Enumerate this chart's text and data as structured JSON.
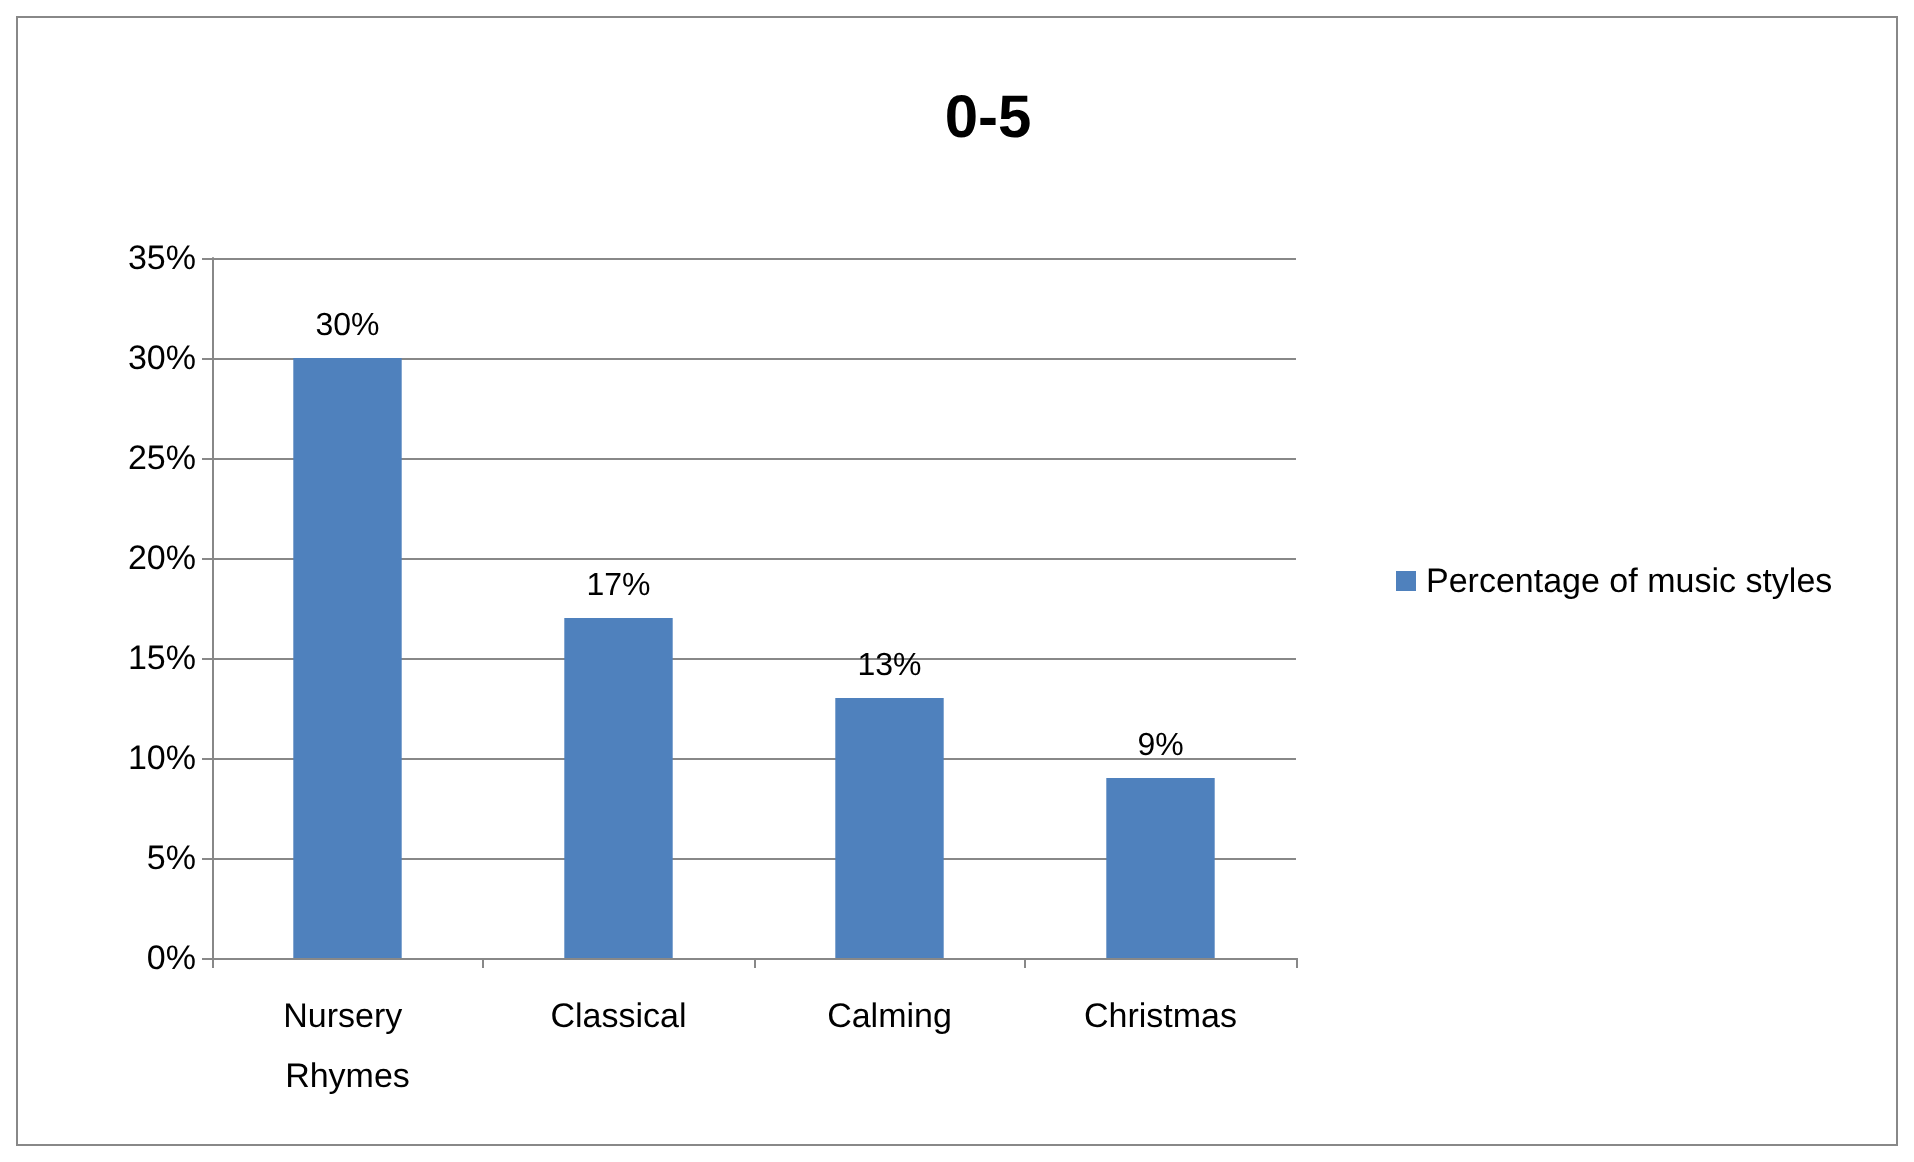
{
  "chart_data": {
    "type": "bar",
    "title": "0-5",
    "categories": [
      "Nursery Rhymes",
      "Classical",
      "Calming",
      "Christmas"
    ],
    "series": [
      {
        "name": "Percentage of music styles",
        "color": "#4f81bd",
        "values": [
          30,
          17,
          13,
          9
        ],
        "value_labels": [
          "30%",
          "17%",
          "13%",
          "9%"
        ]
      }
    ],
    "ylim": [
      0,
      35
    ],
    "yticks": [
      {
        "value": 0,
        "label": "0%"
      },
      {
        "value": 5,
        "label": "5%"
      },
      {
        "value": 10,
        "label": "10%"
      },
      {
        "value": 15,
        "label": "15%"
      },
      {
        "value": 20,
        "label": "20%"
      },
      {
        "value": 25,
        "label": "25%"
      },
      {
        "value": 30,
        "label": "30%"
      },
      {
        "value": 35,
        "label": "35%"
      }
    ],
    "grid": "y",
    "legend": "right"
  }
}
